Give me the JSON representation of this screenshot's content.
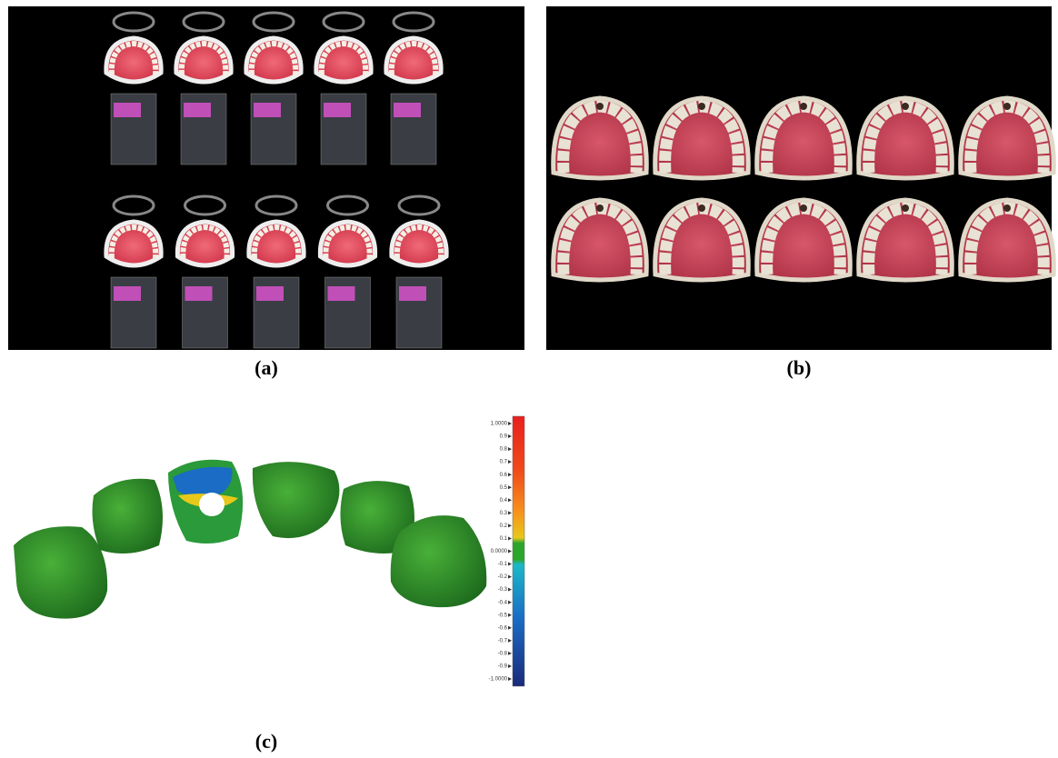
{
  "panels": [
    {
      "label": "(a)"
    },
    {
      "label": "(b)"
    },
    {
      "label": "(c)"
    }
  ],
  "color_scale": {
    "labels": [
      "1.0000",
      "0.9",
      "0.8",
      "0.7",
      "0.6",
      "0.5",
      "0.4",
      "0.3",
      "0.2",
      "0.1",
      "0.0000",
      "-0.1",
      "-0.2",
      "-0.3",
      "-0.4",
      "-0.5",
      "-0.6",
      "-0.7",
      "-0.8",
      "-0.9",
      "-1.0000"
    ]
  }
}
